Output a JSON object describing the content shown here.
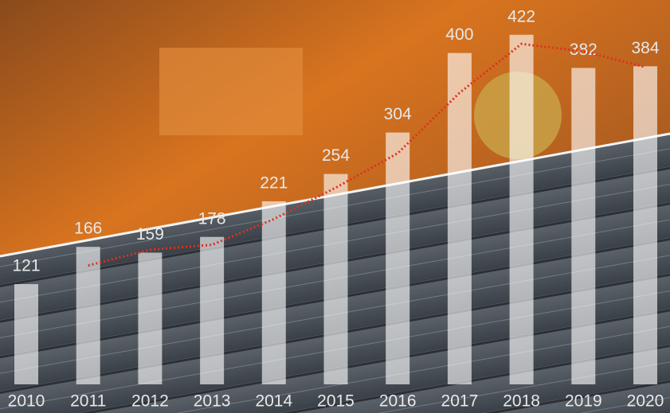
{
  "chart_data": {
    "type": "bar",
    "categories": [
      "2010",
      "2011",
      "2012",
      "2013",
      "2014",
      "2015",
      "2016",
      "2017",
      "2018",
      "2019",
      "2020"
    ],
    "values": [
      121,
      166,
      159,
      178,
      221,
      254,
      304,
      400,
      422,
      382,
      384
    ],
    "color": "rgba(255,255,255,0.62)",
    "trend": [
      null,
      143.5,
      162.5,
      168.5,
      199.5,
      237.5,
      279,
      352,
      411,
      402,
      383
    ],
    "trend_color": "#e03020",
    "ylim": [
      0,
      464
    ]
  }
}
